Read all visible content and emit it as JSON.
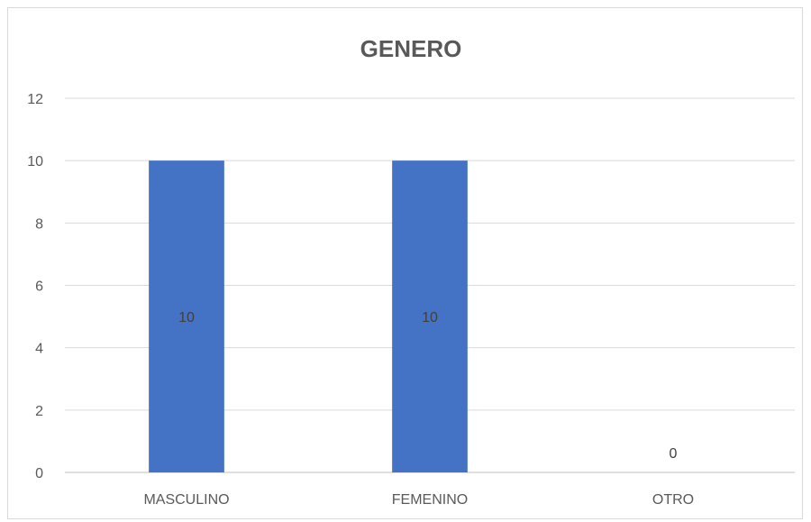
{
  "chart_data": {
    "type": "bar",
    "title": "GENERO",
    "categories": [
      "MASCULINO",
      "FEMENINO",
      "OTRO"
    ],
    "values": [
      10,
      10,
      0
    ],
    "xlabel": "",
    "ylabel": "",
    "ylim": [
      0,
      12
    ],
    "yticks": [
      0,
      2,
      4,
      6,
      8,
      10,
      12
    ],
    "grid": true,
    "legend": "none",
    "bar_color": "#4472c4",
    "data_labels": [
      "10",
      "10",
      "0"
    ]
  }
}
